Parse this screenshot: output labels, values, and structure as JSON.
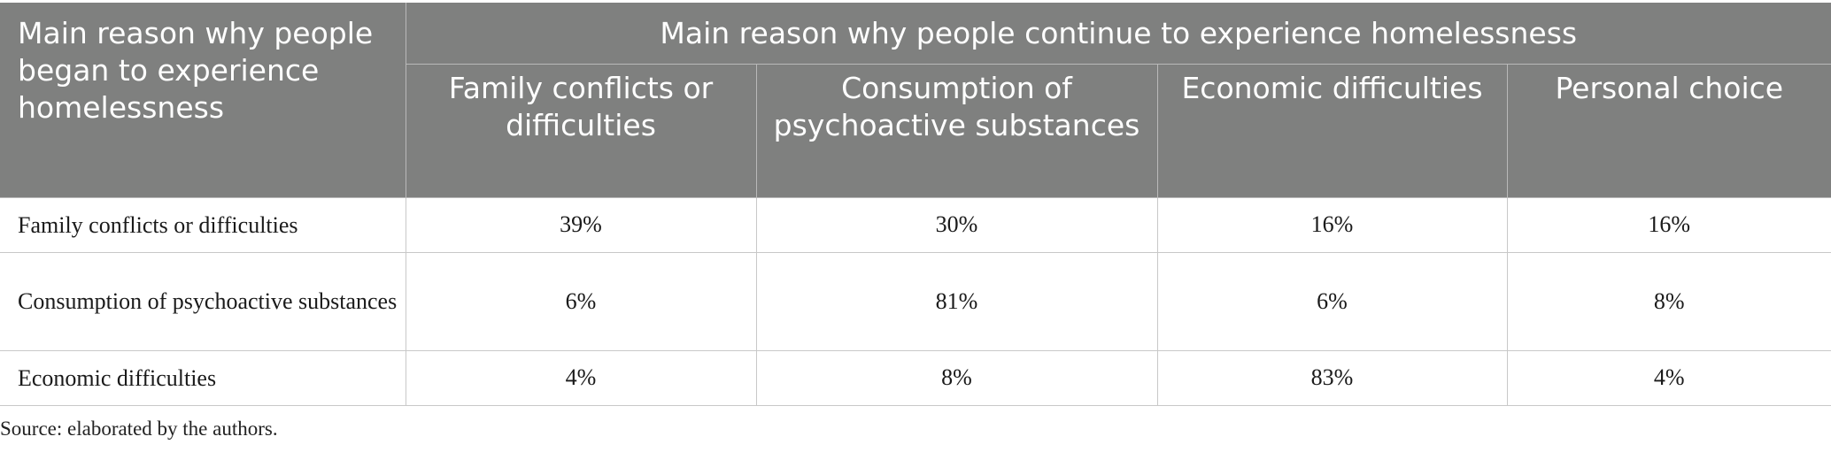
{
  "table": {
    "corner_header": "Main reason why people began to experience homelessness",
    "group_header": "Main reason why people continue to experience homelessness",
    "columns": [
      "Family conflicts or difficulties",
      "Consumption of psychoactive substances",
      "Economic difficulties",
      "Personal choice"
    ],
    "rows": [
      {
        "label": "Family conflicts or difficulties",
        "values": [
          "39%",
          "30%",
          "16%",
          "16%"
        ]
      },
      {
        "label": "Consumption of psychoactive substances",
        "values": [
          "6%",
          "81%",
          "6%",
          "8%"
        ]
      },
      {
        "label": "Economic difficulties",
        "values": [
          "4%",
          "8%",
          "83%",
          "4%"
        ]
      }
    ]
  },
  "source_note": "Source: elaborated by the authors."
}
